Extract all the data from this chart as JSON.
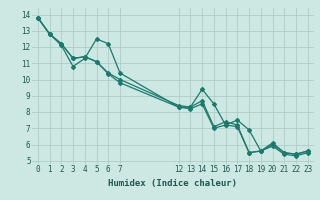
{
  "xlabel": "Humidex (Indice chaleur)",
  "background_color": "#cde8e2",
  "grid_color": "#b0ccc8",
  "line_color": "#1a7a6e",
  "xlim": [
    -0.5,
    23.5
  ],
  "ylim": [
    4.8,
    14.4
  ],
  "yticks": [
    5,
    6,
    7,
    8,
    9,
    10,
    11,
    12,
    13,
    14
  ],
  "xticks_left": [
    0,
    1,
    2,
    3,
    4,
    5,
    6,
    7
  ],
  "xticks_right": [
    12,
    13,
    14,
    15,
    16,
    17,
    18,
    19,
    20,
    21,
    22,
    23
  ],
  "line1_x": [
    0,
    1,
    2,
    3,
    4,
    5,
    6,
    7,
    12,
    13,
    14,
    15,
    16,
    17,
    18,
    19,
    20,
    21,
    22,
    23
  ],
  "line1_y": [
    13.8,
    12.8,
    12.1,
    10.8,
    11.3,
    12.5,
    12.2,
    10.4,
    8.3,
    8.3,
    9.4,
    8.5,
    7.2,
    7.5,
    6.9,
    5.6,
    6.1,
    5.5,
    5.4,
    5.6
  ],
  "line2_x": [
    0,
    1,
    2,
    3,
    4,
    5,
    6,
    7,
    12,
    13,
    14,
    15,
    16,
    17,
    18,
    19,
    20,
    21,
    22,
    23
  ],
  "line2_y": [
    13.8,
    12.8,
    12.2,
    11.3,
    11.4,
    11.1,
    10.4,
    10.0,
    8.4,
    8.3,
    8.7,
    7.1,
    7.4,
    7.2,
    5.5,
    5.6,
    6.0,
    5.5,
    5.4,
    5.6
  ],
  "line3_x": [
    0,
    1,
    2,
    3,
    4,
    5,
    6,
    7,
    12,
    13,
    14,
    15,
    16,
    17,
    18,
    19,
    20,
    21,
    22,
    23
  ],
  "line3_y": [
    13.8,
    12.8,
    12.2,
    11.3,
    11.4,
    11.1,
    10.35,
    9.8,
    8.3,
    8.2,
    8.5,
    7.0,
    7.2,
    7.1,
    5.5,
    5.6,
    5.9,
    5.4,
    5.3,
    5.5
  ],
  "tick_fontsize": 5.5,
  "xlabel_fontsize": 6.5,
  "xlabel_color": "#1a5a50"
}
